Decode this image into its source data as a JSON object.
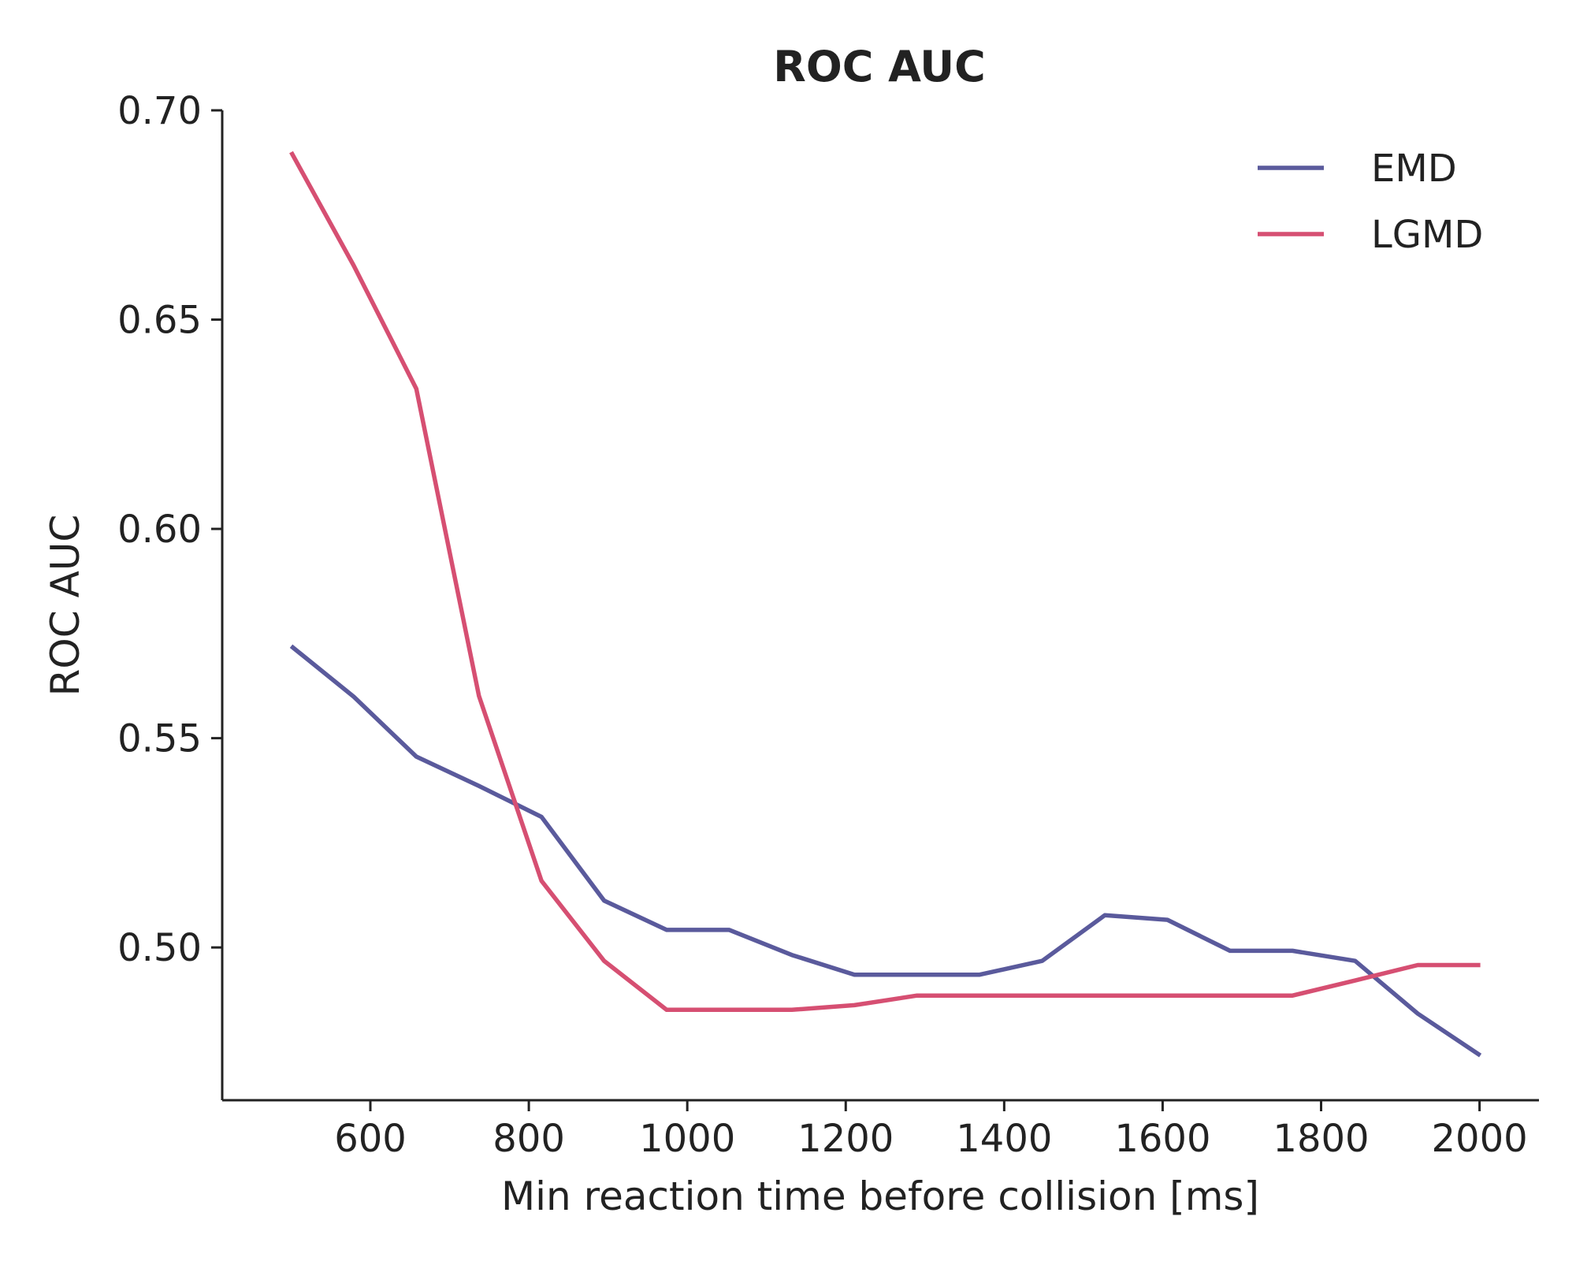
{
  "chart_data": {
    "type": "line",
    "title": "ROC AUC",
    "xlabel": "Min reaction time before collision [ms]",
    "ylabel": "ROC AUC",
    "xlim": [
      413,
      2075
    ],
    "ylim": [
      0.4635,
      0.7
    ],
    "xticks": [
      600,
      800,
      1000,
      1200,
      1400,
      1600,
      1800,
      2000
    ],
    "yticks": [
      0.5,
      0.55,
      0.6,
      0.65,
      0.7
    ],
    "xtick_labels": [
      "600",
      "800",
      "1000",
      "1200",
      "1400",
      "1600",
      "1800",
      "2000"
    ],
    "ytick_labels": [
      "0.50",
      "0.55",
      "0.60",
      "0.65",
      "0.70"
    ],
    "grid": false,
    "legend_position": "top-right",
    "x": [
      500,
      579,
      658,
      737,
      816,
      895,
      974,
      1053,
      1132,
      1211,
      1290,
      1369,
      1448,
      1527,
      1606,
      1685,
      1764,
      1843,
      1922,
      2001
    ],
    "series": [
      {
        "name": "EMD",
        "color": "#5a5a9c",
        "values": [
          0.572,
          0.5599,
          0.5456,
          0.5386,
          0.5312,
          0.5112,
          0.5042,
          0.5042,
          0.4982,
          0.4935,
          0.4935,
          0.4935,
          0.4968,
          0.5077,
          0.5066,
          0.4992,
          0.4992,
          0.4968,
          0.4842,
          0.4742
        ]
      },
      {
        "name": "LGMD",
        "color": "#d64f72",
        "values": [
          0.69,
          0.6629,
          0.6335,
          0.5601,
          0.5159,
          0.4968,
          0.4851,
          0.4851,
          0.4851,
          0.4862,
          0.4885,
          0.4885,
          0.4885,
          0.4885,
          0.4885,
          0.4885,
          0.4885,
          0.4921,
          0.4958,
          0.4958
        ]
      }
    ]
  }
}
